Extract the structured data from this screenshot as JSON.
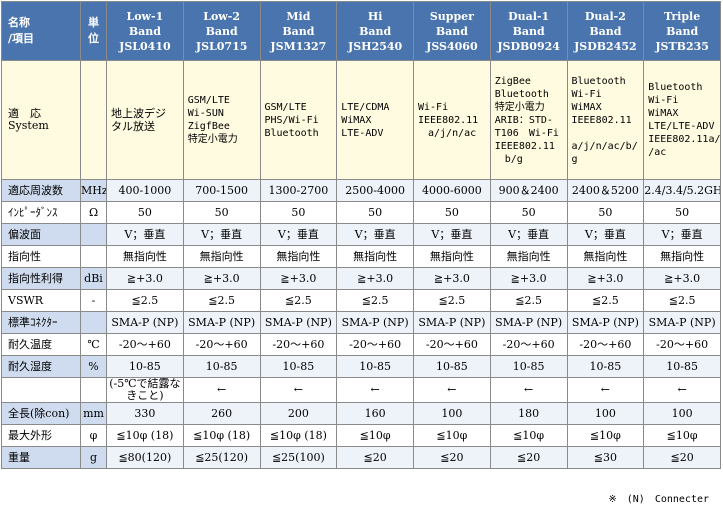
{
  "header": {
    "name_label": [
      "名称",
      "/項目"
    ],
    "unit_label": [
      "単",
      "位"
    ],
    "bands": [
      {
        "line1": "Low-1",
        "line2": "Band",
        "code": "JSL0410"
      },
      {
        "line1": "Low-2",
        "line2": "Band",
        "code": "JSL0715"
      },
      {
        "line1": "Mid",
        "line2": "Band",
        "code": "JSM1327"
      },
      {
        "line1": "Hi",
        "line2": "Band",
        "code": "JSH2540"
      },
      {
        "line1": "Supper",
        "line2": "Band",
        "code": "JSS4060"
      },
      {
        "line1": "Dual-1",
        "line2": "Band",
        "code": "JSDB0924"
      },
      {
        "line1": "Dual-2",
        "line2": "Band",
        "code": "JSDB2452"
      },
      {
        "line1": "Triple",
        "line2": "Band",
        "code": "JSTB235"
      }
    ]
  },
  "system": {
    "label": [
      "適　応",
      "System"
    ],
    "values": [
      [
        "地上波デジ",
        "タル放送"
      ],
      [
        "GSM/LTE",
        "Wi-SUN",
        "ZigfBee",
        "特定小電力"
      ],
      [
        "GSM/LTE",
        "PHS/Wi-Fi",
        "Bluetooth"
      ],
      [
        "LTE/CDMA",
        "WiMAX",
        "LTE-ADV"
      ],
      [
        "Wi-Fi",
        "IEEE802.11",
        "　a/j/n/ac"
      ],
      [
        "ZigBee",
        "Bluetooth",
        "特定小電力",
        "ARIB：STD-",
        "T106　Wi-Fi",
        "IEEE802.11",
        "　b/g"
      ],
      [
        "Bluetooth",
        "Wi-Fi",
        "WiMAX",
        "IEEE802.11",
        "　a/j/n/ac/b/",
        "g"
      ],
      [
        "Bluetooth",
        "Wi-Fi",
        "WiMAX",
        "LTE/LTE-ADV",
        "IEEE802.11a/j/n",
        "/ac"
      ]
    ]
  },
  "rows": [
    {
      "label": "適応周波数",
      "unit": "MHz",
      "values": [
        "400-1000",
        "700-1500",
        "1300-2700",
        "2500-4000",
        "4000-6000",
        "900＆2400",
        "2400＆5200",
        "2.4/3.4/5.2GHz"
      ]
    },
    {
      "label": "ｲﾝﾋﾟｰﾀﾞﾝｽ",
      "unit": "Ω",
      "values": [
        "50",
        "50",
        "50",
        "50",
        "50",
        "50",
        "50",
        "50"
      ]
    },
    {
      "label": "偏波面",
      "unit": "",
      "values": [
        "V；垂直",
        "V；垂直",
        "V；垂直",
        "V；垂直",
        "V；垂直",
        "V；垂直",
        "V；垂直",
        "V；垂直"
      ]
    },
    {
      "label": "指向性",
      "unit": "",
      "values": [
        "無指向性",
        "無指向性",
        "無指向性",
        "無指向性",
        "無指向性",
        "無指向性",
        "無指向性",
        "無指向性"
      ]
    },
    {
      "label": "指向性利得",
      "unit": "dBi",
      "values": [
        "≧+3.0",
        "≧+3.0",
        "≧+3.0",
        "≧+3.0",
        "≧+3.0",
        "≧+3.0",
        "≧+3.0",
        "≧+3.0"
      ]
    },
    {
      "label": "VSWR",
      "unit": "-",
      "values": [
        "≦2.5",
        "≦2.5",
        "≦2.5",
        "≦2.5",
        "≦2.5",
        "≦2.5",
        "≦2.5",
        "≦2.5"
      ]
    },
    {
      "label": "標準ｺﾈｸﾀｰ",
      "unit": "",
      "values": [
        "SMA-P (NP)",
        "SMA-P (NP)",
        "SMA-P (NP)",
        "SMA-P (NP)",
        "SMA-P (NP)",
        "SMA-P (NP)",
        "SMA-P (NP)",
        "SMA-P (NP)"
      ]
    },
    {
      "label": "耐久温度",
      "unit": "℃",
      "values": [
        "-20～+60",
        "-20～+60",
        "-20～+60",
        "-20～+60",
        "-20～+60",
        "-20～+60",
        "-20～+60",
        "-20～+60"
      ]
    },
    {
      "label": "耐久湿度",
      "unit": "%",
      "values": [
        "10-85",
        "10-85",
        "10-85",
        "10-85",
        "10-85",
        "10-85",
        "10-85",
        "10-85"
      ]
    },
    {
      "label": "",
      "unit": "",
      "values": [
        "(-5℃で結露なきこと)",
        "←",
        "←",
        "←",
        "←",
        "←",
        "←",
        "←"
      ]
    },
    {
      "label": "全長(除con)",
      "unit": "mm",
      "values": [
        "330",
        "260",
        "200",
        "160",
        "100",
        "180",
        "100",
        "100"
      ]
    },
    {
      "label": "最大外形",
      "unit": "φ",
      "values": [
        "≦10φ (18)",
        "≦10φ (18)",
        "≦10φ (18)",
        "≦10φ",
        "≦10φ",
        "≦10φ",
        "≦10φ",
        "≦10φ"
      ]
    },
    {
      "label": "重量",
      "unit": "g",
      "values": [
        "≦80(120)",
        "≦25(120)",
        "≦25(100)",
        "≦20",
        "≦20",
        "≦20",
        "≦30",
        "≦20"
      ]
    }
  ],
  "footnote": "※　(N)　Connecter"
}
